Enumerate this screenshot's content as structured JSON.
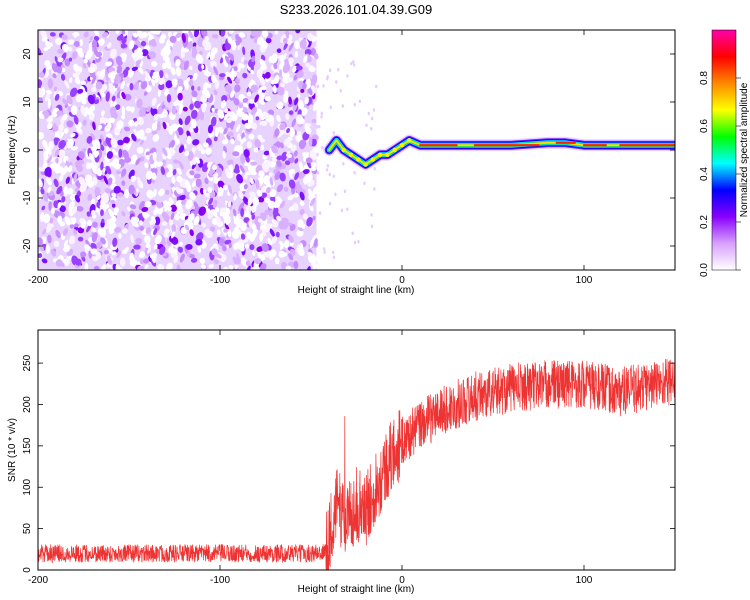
{
  "title": "S233.2026.101.04.39.G09",
  "chart_data": [
    {
      "type": "heatmap",
      "name": "spectrogram",
      "xlabel": "Height of straight line (km)",
      "ylabel": "Frequency (Hz)",
      "xlim": [
        -200,
        150
      ],
      "ylim": [
        -25,
        25
      ],
      "xticks": [
        -200,
        -100,
        0,
        100
      ],
      "yticks": [
        -20,
        -10,
        0,
        10,
        20
      ],
      "noise_region_x": [
        -200,
        -47
      ],
      "ridge": {
        "x": [
          -40,
          -36,
          -32,
          -28,
          -24,
          -20,
          -16,
          -12,
          -8,
          -4,
          0,
          4,
          10,
          20,
          40,
          60,
          80,
          90,
          100,
          120,
          150
        ],
        "freq": [
          0,
          2,
          0,
          -1,
          -2,
          -3,
          -2,
          -1,
          -1,
          0,
          1,
          2,
          1,
          1,
          1,
          1,
          1.5,
          1.5,
          1,
          1,
          1
        ]
      },
      "colorbar": {
        "label": "Normalized spectral amplitude",
        "range": [
          0,
          1
        ],
        "ticks": [
          "0.0",
          "0.2",
          "0.4",
          "0.6",
          "0.8"
        ],
        "colors": [
          "#ffffff",
          "#d9a0ff",
          "#8800ff",
          "#0000ff",
          "#00ffff",
          "#00ff00",
          "#ffff00",
          "#ff8800",
          "#ff0000",
          "#ff00aa"
        ]
      }
    },
    {
      "type": "line",
      "name": "snr",
      "xlabel": "Height of straight line (km)",
      "ylabel": "SNR (10 * v/v)",
      "xlim": [
        -200,
        150
      ],
      "ylim": [
        0,
        290
      ],
      "xticks": [
        -200,
        -100,
        0,
        100
      ],
      "yticks": [
        0,
        50,
        100,
        150,
        200,
        250
      ],
      "color": "#ee3333",
      "series": [
        {
          "name": "SNR",
          "x": [
            -200,
            -150,
            -100,
            -50,
            -42,
            -40,
            -36,
            -30,
            -25,
            -20,
            -15,
            -10,
            -5,
            0,
            10,
            20,
            30,
            40,
            60,
            80,
            100,
            120,
            150
          ],
          "y": [
            20,
            20,
            20,
            20,
            22,
            40,
            80,
            60,
            80,
            70,
            100,
            120,
            140,
            155,
            175,
            190,
            200,
            210,
            220,
            225,
            225,
            215,
            230
          ]
        }
      ]
    }
  ]
}
